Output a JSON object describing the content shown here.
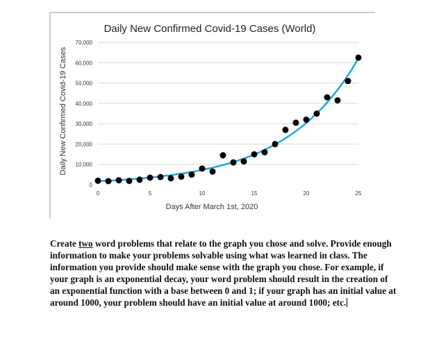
{
  "chart_data": {
    "type": "scatter",
    "title": "Daily New Confirmed Covid-19 Cases (World)",
    "xlabel": "Days After March 1st, 2020",
    "ylabel": "Daily New Confirmed Covid-19 Cases",
    "xlim": [
      0,
      25
    ],
    "ylim": [
      0,
      70000
    ],
    "x_ticks": [
      "0",
      "5",
      "10",
      "15",
      "20",
      "25"
    ],
    "y_ticks": [
      "0",
      "10,000",
      "20,000",
      "30,000",
      "40,000",
      "50,000",
      "60,000",
      "70,000"
    ],
    "points": [
      {
        "x": 0,
        "y": 2000
      },
      {
        "x": 1,
        "y": 1800
      },
      {
        "x": 2,
        "y": 2200
      },
      {
        "x": 3,
        "y": 1900
      },
      {
        "x": 4,
        "y": 2500
      },
      {
        "x": 5,
        "y": 3500
      },
      {
        "x": 6,
        "y": 3800
      },
      {
        "x": 7,
        "y": 3200
      },
      {
        "x": 8,
        "y": 4000
      },
      {
        "x": 9,
        "y": 5000
      },
      {
        "x": 10,
        "y": 8000
      },
      {
        "x": 11,
        "y": 6500
      },
      {
        "x": 12,
        "y": 14500
      },
      {
        "x": 13,
        "y": 11000
      },
      {
        "x": 14,
        "y": 11500
      },
      {
        "x": 15,
        "y": 15000
      },
      {
        "x": 16,
        "y": 16000
      },
      {
        "x": 17,
        "y": 20000
      },
      {
        "x": 18,
        "y": 27000
      },
      {
        "x": 19,
        "y": 30500
      },
      {
        "x": 20,
        "y": 32000
      },
      {
        "x": 21,
        "y": 35000
      },
      {
        "x": 22,
        "y": 43000
      },
      {
        "x": 23,
        "y": 41500
      },
      {
        "x": 24,
        "y": 51000
      },
      {
        "x": 25,
        "y": 62500
      }
    ],
    "trendline": {
      "type": "exponential",
      "a": 1750,
      "b": 1.1535
    },
    "colors": {
      "points": "#000000",
      "trendline": "#1ea7e1",
      "grid": "#d9d9d9"
    }
  },
  "prompt": {
    "part1": "Create ",
    "underlined": "two",
    "part2": " word problems that relate to the graph you chose and solve. Provide enough information to make your problems solvable using what was learned in class. The information you provide should make sense with the graph you chose. For example, if your graph is an exponential decay, your word problem should result in the creation of an exponential function with a base between 0 and 1; if your graph has an initial value at around 1000, your problem should have an initial value at around 1000; etc."
  }
}
